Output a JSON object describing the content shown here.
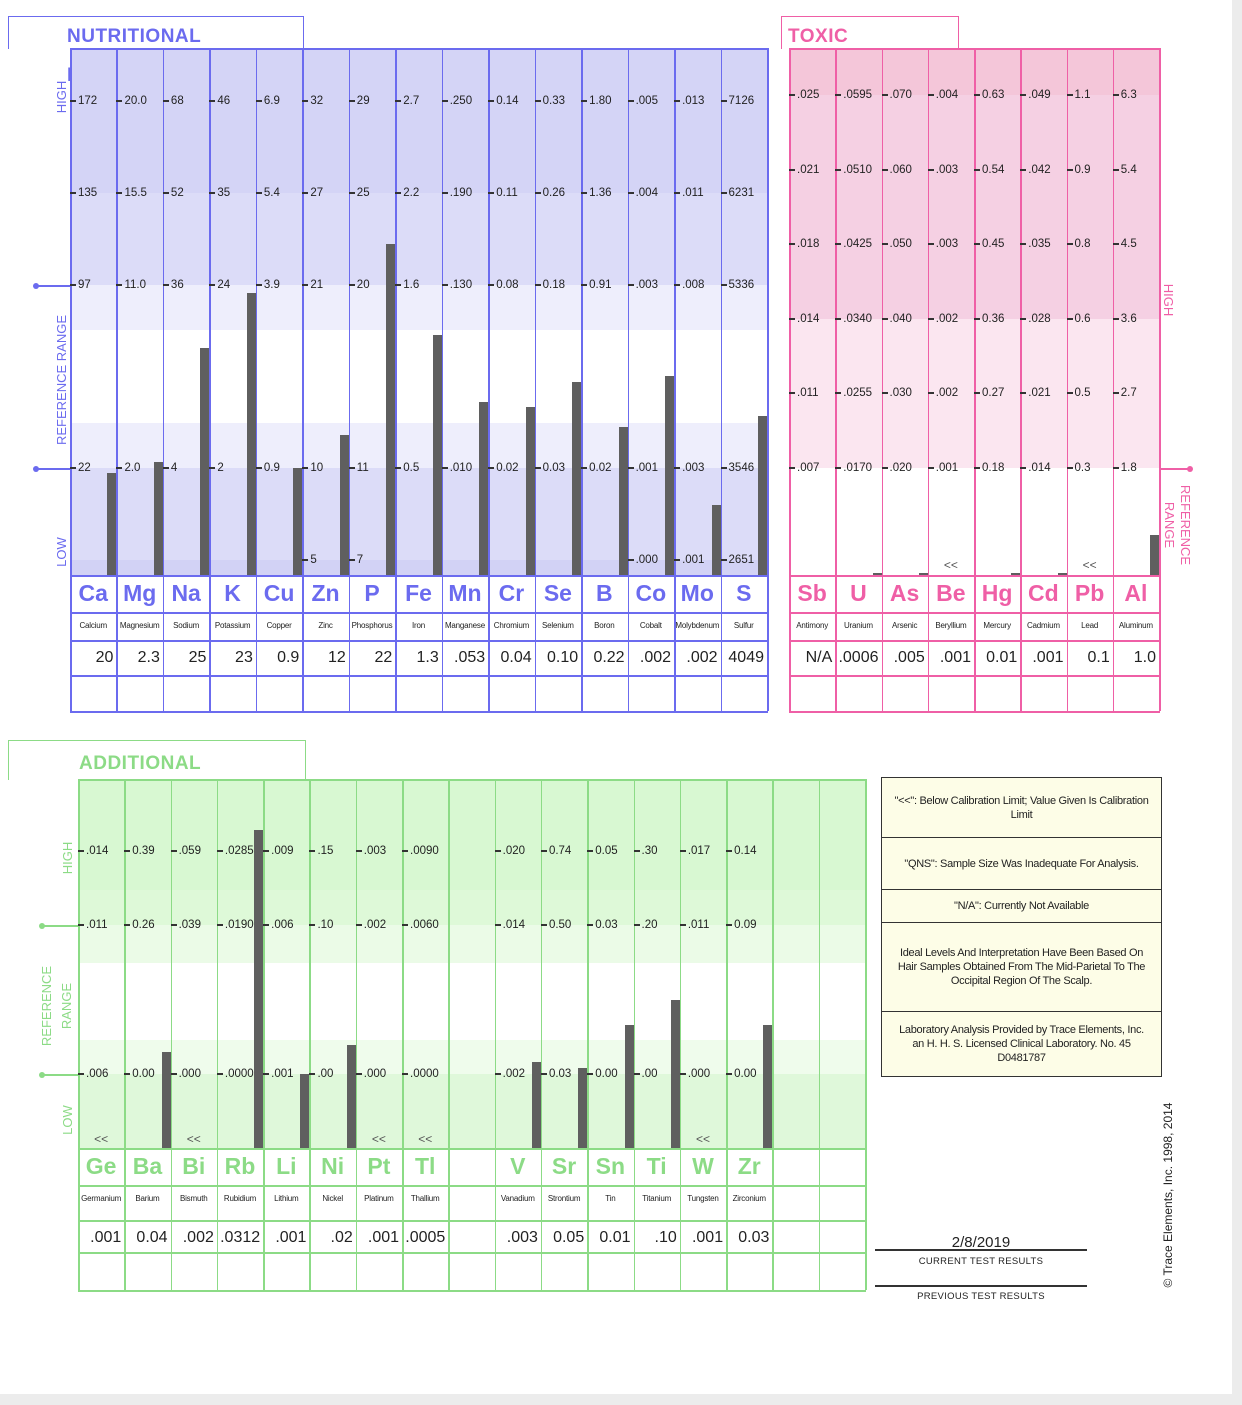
{
  "colors": {
    "nutritional": "#6b6bef",
    "toxic": "#ef5fa6",
    "additional": "#8cdb86",
    "bar": "#5f5f5f"
  },
  "axis_labels": {
    "high": "HIGH",
    "low": "LOW",
    "reference_range": "REFERENCE RANGE",
    "reference_line1": "REFERENCE",
    "reference_line2": "RANGE"
  },
  "below_limit_symbol": "<<",
  "chart_data": [
    {
      "type": "bar",
      "title": "NUTRITIONAL ELEMENTS",
      "elements": [
        {
          "symbol": "Ca",
          "name": "Calcium",
          "result": "20",
          "ticks": [
            "172",
            "135",
            "97",
            "22",
            null
          ],
          "level": 0.194,
          "below_limit": false
        },
        {
          "symbol": "Mg",
          "name": "Magnesium",
          "result": "2.3",
          "ticks": [
            "20.0",
            "15.5",
            "11.0",
            "2.0",
            null
          ],
          "level": 0.214,
          "below_limit": false
        },
        {
          "symbol": "Na",
          "name": "Sodium",
          "result": "25",
          "ticks": [
            "68",
            "52",
            "36",
            "4",
            null
          ],
          "level": 0.431,
          "below_limit": false
        },
        {
          "symbol": "K",
          "name": "Potassium",
          "result": "23",
          "ticks": [
            "46",
            "35",
            "24",
            "2",
            null
          ],
          "level": 0.535,
          "below_limit": false
        },
        {
          "symbol": "Cu",
          "name": "Copper",
          "result": "0.9",
          "ticks": [
            "6.9",
            "5.4",
            "3.9",
            "0.9",
            null
          ],
          "level": 0.203,
          "below_limit": false
        },
        {
          "symbol": "Zn",
          "name": "Zinc",
          "result": "12",
          "ticks": [
            "32",
            "27",
            "21",
            "10",
            "5"
          ],
          "level": 0.266,
          "below_limit": false
        },
        {
          "symbol": "P",
          "name": "Phosphorus",
          "result": "22",
          "ticks": [
            "29",
            "25",
            "20",
            "11",
            "7"
          ],
          "level": 0.628,
          "below_limit": false
        },
        {
          "symbol": "Fe",
          "name": "Iron",
          "result": "1.3",
          "ticks": [
            "2.7",
            "2.2",
            "1.6",
            "0.5",
            null
          ],
          "level": 0.455,
          "below_limit": false
        },
        {
          "symbol": "Mn",
          "name": "Manganese",
          "result": ".053",
          "ticks": [
            ".250",
            ".190",
            ".130",
            ".010",
            null
          ],
          "level": 0.328,
          "below_limit": false
        },
        {
          "symbol": "Cr",
          "name": "Chromium",
          "result": "0.04",
          "ticks": [
            "0.14",
            "0.11",
            "0.08",
            "0.02",
            null
          ],
          "level": 0.319,
          "below_limit": false
        },
        {
          "symbol": "Se",
          "name": "Selenium",
          "result": "0.10",
          "ticks": [
            "0.33",
            "0.26",
            "0.18",
            "0.03",
            null
          ],
          "level": 0.366,
          "below_limit": false
        },
        {
          "symbol": "B",
          "name": "Boron",
          "result": "0.22",
          "ticks": [
            "1.80",
            "1.36",
            "0.91",
            "0.02",
            null
          ],
          "level": 0.281,
          "below_limit": false
        },
        {
          "symbol": "Co",
          "name": "Cobalt",
          "result": ".002",
          "ticks": [
            ".005",
            ".004",
            ".003",
            ".001",
            ".000"
          ],
          "level": 0.378,
          "below_limit": false
        },
        {
          "symbol": "Mo",
          "name": "Molybdenum",
          "result": ".002",
          "ticks": [
            ".013",
            ".011",
            ".008",
            ".003",
            ".001"
          ],
          "level": 0.133,
          "below_limit": false
        },
        {
          "symbol": "S",
          "name": "Sulfur",
          "result": "4049",
          "ticks": [
            "7126",
            "6231",
            "5336",
            "3546",
            "2651"
          ],
          "level": 0.302,
          "below_limit": false
        }
      ]
    },
    {
      "type": "bar",
      "title": "TOXIC ELEMENTS",
      "elements": [
        {
          "symbol": "Sb",
          "name": "Antimony",
          "result": "N/A",
          "ticks": [
            ".025",
            ".021",
            ".018",
            ".014",
            ".011",
            ".007"
          ],
          "level": 0,
          "below_limit": false
        },
        {
          "symbol": "U",
          "name": "Uranium",
          "result": ".0006",
          "ticks": [
            ".0595",
            ".0510",
            ".0425",
            ".0340",
            ".0255",
            ".0170"
          ],
          "level": 0.004,
          "below_limit": false
        },
        {
          "symbol": "As",
          "name": "Arsenic",
          "result": ".005",
          "ticks": [
            ".070",
            ".060",
            ".050",
            ".040",
            ".030",
            ".020"
          ],
          "level": 0.004,
          "below_limit": false
        },
        {
          "symbol": "Be",
          "name": "Beryllium",
          "result": ".001",
          "ticks": [
            ".004",
            ".003",
            ".003",
            ".002",
            ".002",
            ".001"
          ],
          "level": 0,
          "below_limit": true
        },
        {
          "symbol": "Hg",
          "name": "Mercury",
          "result": "0.01",
          "ticks": [
            "0.63",
            "0.54",
            "0.45",
            "0.36",
            "0.27",
            "0.18"
          ],
          "level": 0.004,
          "below_limit": false
        },
        {
          "symbol": "Cd",
          "name": "Cadmium",
          "result": ".001",
          "ticks": [
            ".049",
            ".042",
            ".035",
            ".028",
            ".021",
            ".014"
          ],
          "level": 0.004,
          "below_limit": false
        },
        {
          "symbol": "Pb",
          "name": "Lead",
          "result": "0.1",
          "ticks": [
            "1.1",
            "0.9",
            "0.8",
            "0.6",
            "0.5",
            "0.3"
          ],
          "level": 0,
          "below_limit": true
        },
        {
          "symbol": "Al",
          "name": "Aluminum",
          "result": "1.0",
          "ticks": [
            "6.3",
            "5.4",
            "4.5",
            "3.6",
            "2.7",
            "1.8"
          ],
          "level": 0.076,
          "below_limit": false
        }
      ]
    },
    {
      "type": "bar",
      "title": "ADDITIONAL ELEMENTS",
      "elements": [
        {
          "symbol": "Ge",
          "name": "Germanium",
          "result": ".001",
          "ticks": [
            ".014",
            ".011",
            ".006"
          ],
          "level": 0,
          "below_limit": true
        },
        {
          "symbol": "Ba",
          "name": "Barium",
          "result": "0.04",
          "ticks": [
            "0.39",
            "0.26",
            "0.00"
          ],
          "level": 0.26,
          "below_limit": false
        },
        {
          "symbol": "Bi",
          "name": "Bismuth",
          "result": ".002",
          "ticks": [
            ".059",
            ".039",
            ".000"
          ],
          "level": 0,
          "below_limit": true
        },
        {
          "symbol": "Rb",
          "name": "Rubidium",
          "result": ".0312",
          "ticks": [
            ".0285",
            ".0190",
            ".0000"
          ],
          "level": 0.862,
          "below_limit": false
        },
        {
          "symbol": "Li",
          "name": "Lithium",
          "result": ".001",
          "ticks": [
            ".009",
            ".006",
            ".001"
          ],
          "level": 0.2,
          "below_limit": false
        },
        {
          "symbol": "Ni",
          "name": "Nickel",
          "result": ".02",
          "ticks": [
            ".15",
            ".10",
            ".00"
          ],
          "level": 0.279,
          "below_limit": false
        },
        {
          "symbol": "Pt",
          "name": "Platinum",
          "result": ".001",
          "ticks": [
            ".003",
            ".002",
            ".000"
          ],
          "level": 0,
          "below_limit": true
        },
        {
          "symbol": "Tl",
          "name": "Thallium",
          "result": ".0005",
          "ticks": [
            ".0090",
            ".0060",
            ".0000"
          ],
          "level": 0,
          "below_limit": true
        },
        null,
        {
          "symbol": "V",
          "name": "Vanadium",
          "result": ".003",
          "ticks": [
            ".020",
            ".014",
            ".002"
          ],
          "level": 0.233,
          "below_limit": false
        },
        {
          "symbol": "Sr",
          "name": "Strontium",
          "result": "0.05",
          "ticks": [
            "0.74",
            "0.50",
            "0.03"
          ],
          "level": 0.217,
          "below_limit": false
        },
        {
          "symbol": "Sn",
          "name": "Tin",
          "result": "0.01",
          "ticks": [
            "0.05",
            "0.03",
            "0.00"
          ],
          "level": 0.333,
          "below_limit": false
        },
        {
          "symbol": "Ti",
          "name": "Titanium",
          "result": ".10",
          "ticks": [
            ".30",
            ".20",
            ".00"
          ],
          "level": 0.401,
          "below_limit": false
        },
        {
          "symbol": "W",
          "name": "Tungsten",
          "result": ".001",
          "ticks": [
            ".017",
            ".011",
            ".000"
          ],
          "level": 0,
          "below_limit": true
        },
        {
          "symbol": "Zr",
          "name": "Zirconium",
          "result": "0.03",
          "ticks": [
            "0.14",
            "0.09",
            "0.00"
          ],
          "level": 0.333,
          "below_limit": false
        },
        null,
        null
      ]
    }
  ],
  "legend": [
    "\"<<\": Below Calibration Limit; Value Given Is Calibration Limit",
    "\"QNS\": Sample Size Was Inadequate For Analysis.",
    "\"N/A\": Currently Not Available",
    "Ideal Levels And Interpretation Have Been Based On Hair Samples Obtained From The Mid-Parietal To The Occipital Region Of The Scalp.",
    "Laboratory Analysis Provided by Trace Elements, Inc. an H. H. S. Licensed Clinical Laboratory.  No. 45 D0481787"
  ],
  "results": {
    "current_date": "2/8/2019",
    "current_label": "CURRENT  TEST  RESULTS",
    "previous_label": "PREVIOUS  TEST  RESULTS"
  },
  "copyright": "© Trace Elements, Inc. 1998, 2014"
}
